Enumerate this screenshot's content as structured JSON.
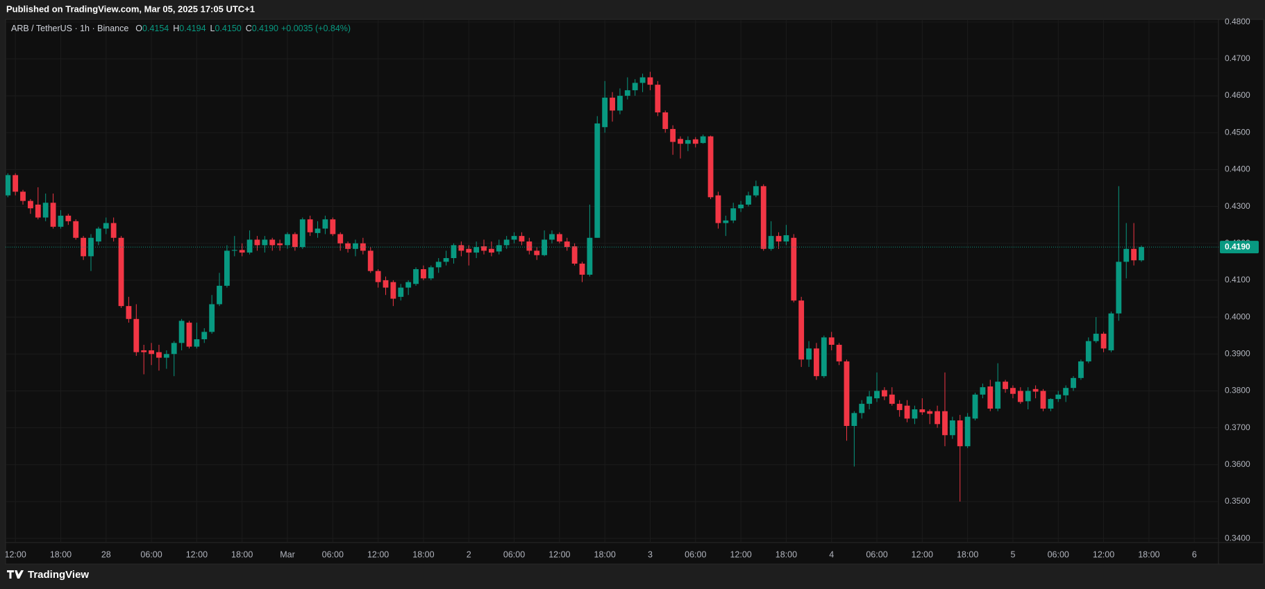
{
  "header": {
    "published": "Published on TradingView.com, Mar 05, 2025 17:05 UTC+1"
  },
  "footer": {
    "brand": "TradingView"
  },
  "chart_data": {
    "type": "candlestick",
    "title": "ARB / TetherUS · 1h · Binance",
    "ohlc_legend": [
      {
        "key": "O",
        "value": "0.4154"
      },
      {
        "key": "H",
        "value": "0.4194"
      },
      {
        "key": "L",
        "value": "0.4150"
      },
      {
        "key": "C",
        "value": "0.4190"
      }
    ],
    "change_label": "+0.0035 (+0.84%)",
    "up_color": "#089981",
    "down_color": "#f23645",
    "grid": true,
    "open": [
      0.433,
      0.4385,
      0.434,
      0.4315,
      0.4305,
      0.427,
      0.431,
      0.4245,
      0.4275,
      0.426,
      0.4215,
      0.4165,
      0.4205,
      0.424,
      0.4255,
      0.4215,
      0.403,
      0.3995,
      0.391,
      0.391,
      0.3905,
      0.389,
      0.39,
      0.393,
      0.3985,
      0.392,
      0.394,
      0.396,
      0.4035,
      0.4085,
      0.418,
      0.4182,
      0.4175,
      0.421,
      0.4195,
      0.421,
      0.42,
      0.4195,
      0.4225,
      0.419,
      0.4265,
      0.4228,
      0.424,
      0.4265,
      0.4225,
      0.42,
      0.4185,
      0.42,
      0.418,
      0.4125,
      0.41,
      0.4095,
      0.4055,
      0.408,
      0.409,
      0.413,
      0.4105,
      0.4135,
      0.415,
      0.416,
      0.4195,
      0.4185,
      0.4175,
      0.4192,
      0.4185,
      0.4178,
      0.4195,
      0.421,
      0.422,
      0.4205,
      0.418,
      0.4168,
      0.421,
      0.4225,
      0.4205,
      0.4192,
      0.4145,
      0.4115,
      0.4215,
      0.4515,
      0.4595,
      0.456,
      0.46,
      0.4615,
      0.4635,
      0.465,
      0.463,
      0.4555,
      0.451,
      0.4483,
      0.447,
      0.4482,
      0.4472,
      0.449,
      0.433,
      0.4255,
      0.4262,
      0.4295,
      0.4305,
      0.433,
      0.4355,
      0.4185,
      0.422,
      0.4205,
      0.4215,
      0.4045,
      0.3885,
      0.3915,
      0.384,
      0.3945,
      0.3925,
      0.388,
      0.3705,
      0.374,
      0.3765,
      0.378,
      0.3802,
      0.379,
      0.3765,
      0.376,
      0.3725,
      0.375,
      0.3745,
      0.3745,
      0.3745,
      0.368,
      0.372,
      0.365,
      0.3725,
      0.379,
      0.3812,
      0.3752,
      0.3825,
      0.3808,
      0.38,
      0.3772,
      0.3805,
      0.38,
      0.3752,
      0.3778,
      0.3788,
      0.3808,
      0.3835,
      0.388,
      0.3935,
      0.3955,
      0.391,
      0.401,
      0.415,
      0.4185,
      0.4154
    ],
    "high": [
      0.439,
      0.439,
      0.4345,
      0.432,
      0.4352,
      0.4335,
      0.4335,
      0.429,
      0.428,
      0.4265,
      0.422,
      0.4225,
      0.4245,
      0.427,
      0.427,
      0.422,
      0.4055,
      0.4035,
      0.3925,
      0.393,
      0.3925,
      0.391,
      0.3935,
      0.3995,
      0.399,
      0.3985,
      0.397,
      0.406,
      0.412,
      0.4195,
      0.422,
      0.42,
      0.4235,
      0.422,
      0.422,
      0.4215,
      0.421,
      0.423,
      0.423,
      0.427,
      0.4275,
      0.426,
      0.4275,
      0.427,
      0.423,
      0.4205,
      0.421,
      0.4215,
      0.419,
      0.413,
      0.411,
      0.41,
      0.409,
      0.41,
      0.4135,
      0.414,
      0.414,
      0.416,
      0.418,
      0.42,
      0.4205,
      0.4195,
      0.4205,
      0.421,
      0.4205,
      0.421,
      0.422,
      0.423,
      0.423,
      0.4215,
      0.419,
      0.4235,
      0.4235,
      0.423,
      0.4215,
      0.42,
      0.415,
      0.4305,
      0.4545,
      0.464,
      0.461,
      0.462,
      0.465,
      0.4645,
      0.466,
      0.4665,
      0.464,
      0.456,
      0.452,
      0.449,
      0.449,
      0.4488,
      0.4495,
      0.4492,
      0.434,
      0.4275,
      0.431,
      0.4315,
      0.434,
      0.437,
      0.436,
      0.426,
      0.423,
      0.425,
      0.4225,
      0.4055,
      0.3935,
      0.393,
      0.395,
      0.396,
      0.393,
      0.3885,
      0.3745,
      0.3775,
      0.38,
      0.385,
      0.381,
      0.381,
      0.3775,
      0.3775,
      0.376,
      0.378,
      0.375,
      0.376,
      0.385,
      0.373,
      0.3735,
      0.374,
      0.3795,
      0.382,
      0.383,
      0.3875,
      0.383,
      0.3815,
      0.381,
      0.381,
      0.3815,
      0.3805,
      0.378,
      0.38,
      0.3815,
      0.384,
      0.3885,
      0.3945,
      0.4,
      0.396,
      0.4015,
      0.4355,
      0.4255,
      0.4255,
      0.4194
    ],
    "low": [
      0.4325,
      0.433,
      0.4305,
      0.428,
      0.4265,
      0.426,
      0.424,
      0.424,
      0.425,
      0.421,
      0.4155,
      0.4125,
      0.4195,
      0.4225,
      0.4205,
      0.4025,
      0.3985,
      0.3895,
      0.3845,
      0.387,
      0.3855,
      0.386,
      0.384,
      0.391,
      0.3915,
      0.3915,
      0.393,
      0.3955,
      0.403,
      0.408,
      0.4165,
      0.4165,
      0.417,
      0.418,
      0.4175,
      0.418,
      0.418,
      0.4185,
      0.418,
      0.4185,
      0.422,
      0.4215,
      0.4225,
      0.422,
      0.418,
      0.4175,
      0.4165,
      0.417,
      0.412,
      0.408,
      0.406,
      0.403,
      0.4045,
      0.406,
      0.4085,
      0.41,
      0.41,
      0.412,
      0.414,
      0.4145,
      0.4165,
      0.414,
      0.416,
      0.417,
      0.4165,
      0.417,
      0.4185,
      0.42,
      0.4195,
      0.417,
      0.4155,
      0.4165,
      0.42,
      0.42,
      0.418,
      0.414,
      0.4095,
      0.411,
      0.4215,
      0.45,
      0.453,
      0.455,
      0.459,
      0.46,
      0.461,
      0.4615,
      0.4545,
      0.45,
      0.444,
      0.443,
      0.445,
      0.446,
      0.447,
      0.432,
      0.424,
      0.422,
      0.4255,
      0.4285,
      0.43,
      0.4325,
      0.418,
      0.418,
      0.4185,
      0.4195,
      0.404,
      0.3865,
      0.3865,
      0.383,
      0.3835,
      0.391,
      0.387,
      0.3665,
      0.3595,
      0.3725,
      0.375,
      0.377,
      0.3775,
      0.376,
      0.373,
      0.3715,
      0.371,
      0.3735,
      0.371,
      0.37,
      0.365,
      0.367,
      0.35,
      0.3645,
      0.372,
      0.378,
      0.3745,
      0.3745,
      0.3795,
      0.378,
      0.3765,
      0.375,
      0.378,
      0.3745,
      0.3745,
      0.377,
      0.377,
      0.38,
      0.383,
      0.3875,
      0.393,
      0.3905,
      0.3905,
      0.399,
      0.4105,
      0.414,
      0.415
    ],
    "close": [
      0.4385,
      0.434,
      0.4315,
      0.4295,
      0.427,
      0.431,
      0.4245,
      0.4275,
      0.426,
      0.4215,
      0.4165,
      0.4215,
      0.424,
      0.4255,
      0.4215,
      0.403,
      0.3995,
      0.3905,
      0.3905,
      0.39,
      0.389,
      0.39,
      0.393,
      0.399,
      0.392,
      0.394,
      0.396,
      0.4035,
      0.4085,
      0.418,
      0.4182,
      0.4175,
      0.421,
      0.4195,
      0.421,
      0.4195,
      0.4195,
      0.4225,
      0.419,
      0.4265,
      0.423,
      0.424,
      0.4265,
      0.4225,
      0.42,
      0.4185,
      0.42,
      0.418,
      0.4125,
      0.4095,
      0.408,
      0.405,
      0.408,
      0.4095,
      0.413,
      0.4105,
      0.4135,
      0.415,
      0.416,
      0.4195,
      0.418,
      0.4175,
      0.419,
      0.418,
      0.4175,
      0.4195,
      0.421,
      0.422,
      0.4205,
      0.418,
      0.4168,
      0.421,
      0.4225,
      0.4205,
      0.419,
      0.4145,
      0.4115,
      0.4215,
      0.4525,
      0.4595,
      0.456,
      0.46,
      0.4615,
      0.4635,
      0.465,
      0.463,
      0.4555,
      0.451,
      0.4475,
      0.447,
      0.448,
      0.447,
      0.449,
      0.4325,
      0.4255,
      0.4262,
      0.4295,
      0.4305,
      0.433,
      0.4355,
      0.4185,
      0.422,
      0.4205,
      0.4222,
      0.4045,
      0.3885,
      0.3915,
      0.384,
      0.3945,
      0.3925,
      0.388,
      0.3705,
      0.374,
      0.3765,
      0.3785,
      0.38,
      0.3785,
      0.3765,
      0.3748,
      0.3725,
      0.375,
      0.3742,
      0.3738,
      0.371,
      0.368,
      0.372,
      0.365,
      0.373,
      0.379,
      0.381,
      0.3752,
      0.3825,
      0.3805,
      0.3792,
      0.377,
      0.38,
      0.3798,
      0.3752,
      0.3778,
      0.379,
      0.3808,
      0.3835,
      0.388,
      0.3935,
      0.3955,
      0.3915,
      0.401,
      0.415,
      0.4185,
      0.4154,
      0.419
    ],
    "xlim": [
      -0.3,
      160.2
    ],
    "xticks": [
      {
        "value": 1,
        "label": "12:00"
      },
      {
        "value": 7,
        "label": "18:00"
      },
      {
        "value": 13,
        "label": "28"
      },
      {
        "value": 19,
        "label": "06:00"
      },
      {
        "value": 25,
        "label": "12:00"
      },
      {
        "value": 31,
        "label": "18:00"
      },
      {
        "value": 37,
        "label": "Mar"
      },
      {
        "value": 43,
        "label": "06:00"
      },
      {
        "value": 49,
        "label": "12:00"
      },
      {
        "value": 55,
        "label": "18:00"
      },
      {
        "value": 61,
        "label": "2"
      },
      {
        "value": 67,
        "label": "06:00"
      },
      {
        "value": 73,
        "label": "12:00"
      },
      {
        "value": 79,
        "label": "18:00"
      },
      {
        "value": 85,
        "label": "3"
      },
      {
        "value": 91,
        "label": "06:00"
      },
      {
        "value": 97,
        "label": "12:00"
      },
      {
        "value": 103,
        "label": "18:00"
      },
      {
        "value": 109,
        "label": "4"
      },
      {
        "value": 115,
        "label": "06:00"
      },
      {
        "value": 121,
        "label": "12:00"
      },
      {
        "value": 127,
        "label": "18:00"
      },
      {
        "value": 133,
        "label": "5"
      },
      {
        "value": 139,
        "label": "06:00"
      },
      {
        "value": 145,
        "label": "12:00"
      },
      {
        "value": 151,
        "label": "18:00"
      },
      {
        "value": 157,
        "label": "6"
      }
    ],
    "ylim": [
      0.3389,
      0.4807
    ],
    "yticks": [
      {
        "value": 0.34,
        "label": "0.3400"
      },
      {
        "value": 0.35,
        "label": "0.3500"
      },
      {
        "value": 0.36,
        "label": "0.3600"
      },
      {
        "value": 0.37,
        "label": "0.3700"
      },
      {
        "value": 0.38,
        "label": "0.3800"
      },
      {
        "value": 0.39,
        "label": "0.3900"
      },
      {
        "value": 0.4,
        "label": "0.4000"
      },
      {
        "value": 0.41,
        "label": "0.4100"
      },
      {
        "value": 0.42,
        "label": "0.4200"
      },
      {
        "value": 0.43,
        "label": "0.4300"
      },
      {
        "value": 0.44,
        "label": "0.4400"
      },
      {
        "value": 0.45,
        "label": "0.4500"
      },
      {
        "value": 0.46,
        "label": "0.4600"
      },
      {
        "value": 0.47,
        "label": "0.4700"
      },
      {
        "value": 0.48,
        "label": "0.4800"
      }
    ],
    "last_price": {
      "value": 0.419,
      "label": "0.4190"
    }
  }
}
